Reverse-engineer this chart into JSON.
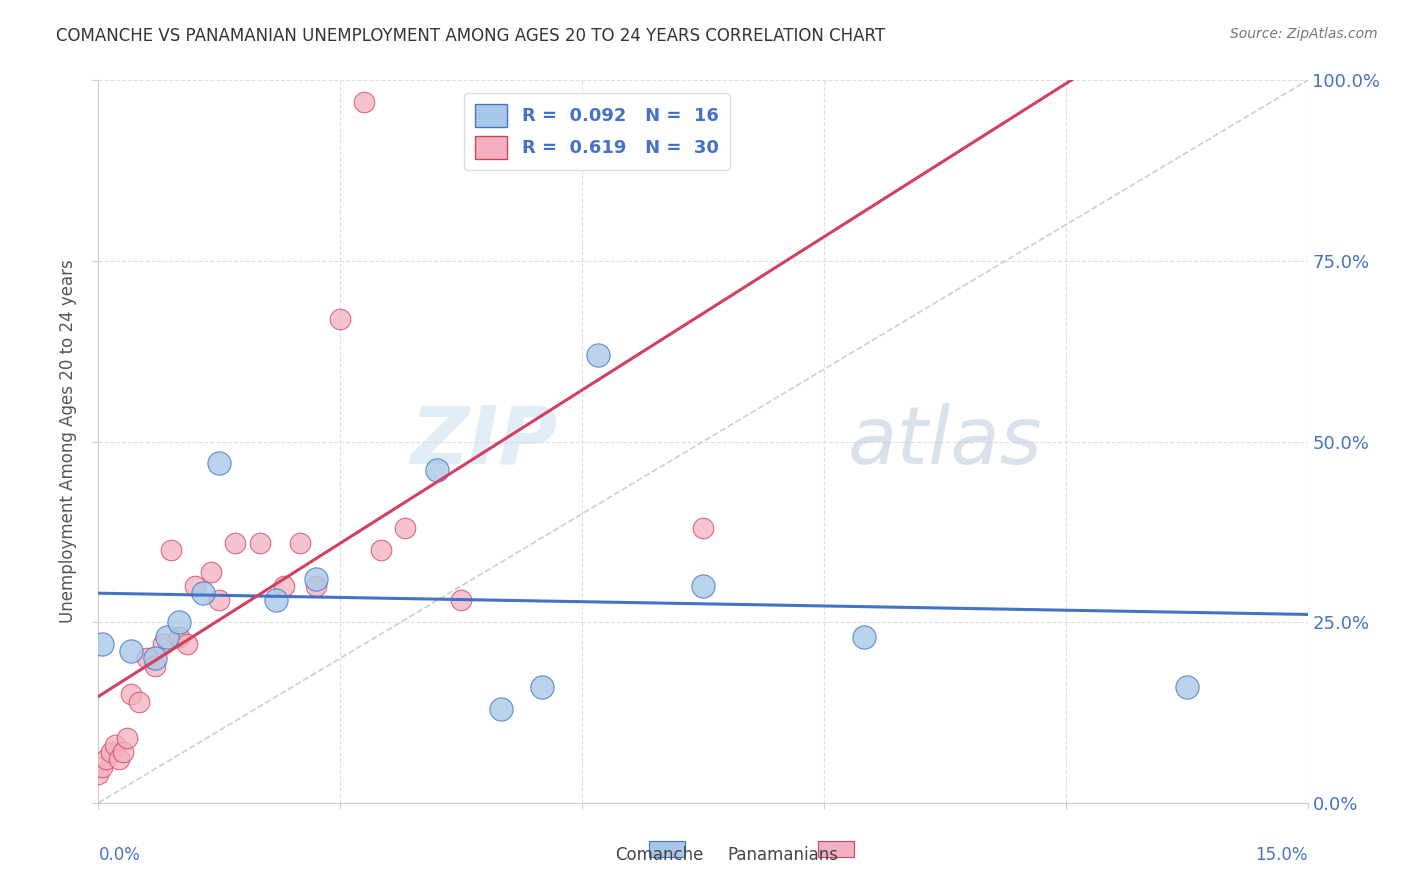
{
  "title": "COMANCHE VS PANAMANIAN UNEMPLOYMENT AMONG AGES 20 TO 24 YEARS CORRELATION CHART",
  "source": "Source: ZipAtlas.com",
  "ylabel": "Unemployment Among Ages 20 to 24 years",
  "xlim": [
    0.0,
    15.0
  ],
  "ylim": [
    0.0,
    100.0
  ],
  "yticks": [
    0,
    25,
    50,
    75,
    100
  ],
  "xticks": [
    0.0,
    3.0,
    6.0,
    9.0,
    12.0,
    15.0
  ],
  "comanche_R": 0.092,
  "comanche_N": 16,
  "panamanian_R": 0.619,
  "panamanian_N": 30,
  "comanche_color": "#a8c8e8",
  "panamanian_color": "#f4b0c0",
  "comanche_line_color": "#4472c4",
  "panamanian_line_color": "#d04060",
  "ref_line_color": "#c8c8c8",
  "background_color": "#ffffff",
  "watermark_zip": "ZIP",
  "watermark_atlas": "atlas",
  "comanche_x": [
    0.05,
    0.4,
    0.7,
    0.85,
    1.0,
    1.3,
    1.5,
    2.2,
    2.7,
    4.2,
    5.5,
    6.2,
    7.5,
    9.5,
    13.5,
    5.0
  ],
  "comanche_y": [
    22.0,
    21.0,
    20.0,
    23.0,
    25.0,
    29.0,
    47.0,
    28.0,
    31.0,
    46.0,
    16.0,
    62.0,
    30.0,
    23.0,
    16.0,
    13.0
  ],
  "panamanian_x": [
    0.0,
    0.05,
    0.1,
    0.15,
    0.2,
    0.25,
    0.3,
    0.35,
    0.4,
    0.5,
    0.6,
    0.7,
    0.8,
    0.9,
    1.0,
    1.1,
    1.2,
    1.4,
    1.5,
    1.7,
    2.0,
    2.3,
    2.5,
    2.7,
    3.0,
    3.5,
    3.8,
    4.5,
    7.5,
    3.3
  ],
  "panamanian_y": [
    4.0,
    5.0,
    6.0,
    7.0,
    8.0,
    6.0,
    7.0,
    9.0,
    15.0,
    14.0,
    20.0,
    19.0,
    22.0,
    35.0,
    23.0,
    22.0,
    30.0,
    32.0,
    28.0,
    36.0,
    36.0,
    30.0,
    36.0,
    30.0,
    67.0,
    35.0,
    38.0,
    28.0,
    38.0,
    97.0
  ]
}
